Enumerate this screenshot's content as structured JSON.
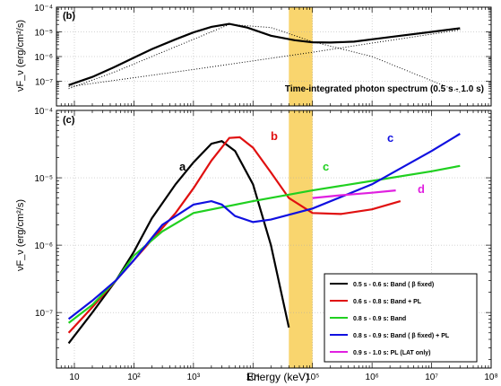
{
  "chart_data": [
    {
      "panel": "(b)",
      "type": "line",
      "title": "",
      "annotation": "Time-integrated photon spectrum (0.5 s - 1.0 s)",
      "xlabel": "",
      "ylabel": "νF_ν (erg/cm²/s)",
      "xscale": "log",
      "yscale": "log",
      "xlim": [
        5,
        100000000
      ],
      "ylim": [
        1e-08,
        0.0001
      ],
      "ytick_labels": [
        "10⁻⁴",
        "10⁻⁵",
        "10⁻⁶",
        "10⁻⁷"
      ],
      "grid": true,
      "highlight_band": {
        "x": [
          40000,
          100000
        ],
        "color": "#f9d56e"
      },
      "series": [
        {
          "color": "#000000",
          "style": "solid",
          "x": [
            8,
            20,
            50,
            100,
            200,
            500,
            1000,
            2000,
            4000,
            8000,
            20000,
            50000,
            100000,
            200000,
            500000,
            1000000,
            3000000,
            10000000,
            30000000
          ],
          "y": [
            7e-08,
            1.5e-07,
            4e-07,
            9e-07,
            2e-06,
            5e-06,
            9.5e-06,
            1.6e-05,
            2.1e-05,
            1.5e-05,
            7e-06,
            4.6e-06,
            3.8e-06,
            3.7e-06,
            4e-06,
            5e-06,
            7e-06,
            1e-05,
            1.4e-05
          ]
        },
        {
          "color": "#000000",
          "style": "dotted",
          "x": [
            8,
            50,
            200,
            1000,
            4000,
            20000,
            100000,
            1000000,
            30000000
          ],
          "y": [
            5e-08,
            2.5e-07,
            1e-06,
            5e-06,
            2e-05,
            1.5e-05,
            4e-06,
            1e-06,
            3.6e-08
          ]
        },
        {
          "color": "#000000",
          "style": "dotted",
          "x": [
            8,
            1000,
            100000,
            1000000,
            30000000
          ],
          "y": [
            6e-08,
            3e-07,
            1.5e-06,
            3.5e-06,
            1.2e-05
          ]
        }
      ]
    },
    {
      "panel": "(c)",
      "type": "line",
      "title": "",
      "xlabel": "Energy (keV)",
      "ylabel": "νF_ν (erg/cm²/s)",
      "xscale": "log",
      "yscale": "log",
      "xlim": [
        5,
        100000000
      ],
      "ylim": [
        1.5e-08,
        0.0001
      ],
      "xtick_labels": [
        "10",
        "10²",
        "10³",
        "10⁴",
        "10⁵",
        "10⁶",
        "10⁷",
        "10⁸"
      ],
      "ytick_labels": [
        "10⁻⁴",
        "10⁻⁵",
        "10⁻⁶",
        "10⁻⁷"
      ],
      "grid": true,
      "legend_position": "bottom-right",
      "highlight_band": {
        "x": [
          40000,
          100000
        ],
        "color": "#f9d56e"
      },
      "series": [
        {
          "name": "0.5 s - 0.6 s: Band ( β fixed)",
          "label": "a",
          "color": "#000000",
          "x": [
            8,
            20,
            50,
            100,
            200,
            500,
            1000,
            2000,
            3000,
            5000,
            10000,
            20000,
            40000
          ],
          "y": [
            3.5e-08,
            1e-07,
            3e-07,
            8e-07,
            2.5e-06,
            8e-06,
            1.7e-05,
            3.2e-05,
            3.5e-05,
            2.5e-05,
            8e-06,
            1e-06,
            6e-08
          ]
        },
        {
          "name": "0.6 s - 0.8 s: Band + PL",
          "label": "b",
          "color": "#e01010",
          "x": [
            8,
            20,
            50,
            100,
            200,
            500,
            1000,
            2000,
            4000,
            6000,
            10000,
            20000,
            40000,
            100000,
            300000,
            1000000,
            3000000
          ],
          "y": [
            5e-08,
            1.2e-07,
            3e-07,
            6e-07,
            1.2e-06,
            3e-06,
            7e-06,
            1.8e-05,
            3.9e-05,
            4e-05,
            2.8e-05,
            1.2e-05,
            5e-06,
            3e-06,
            2.9e-06,
            3.4e-06,
            4.5e-06
          ]
        },
        {
          "name": "0.8 s - 0.9 s: Band",
          "label": "c",
          "color": "#20d020",
          "x": [
            8,
            20,
            50,
            100,
            300,
            1000,
            10000,
            100000,
            1000000,
            10000000,
            30000000
          ],
          "y": [
            7e-08,
            1.3e-07,
            3e-07,
            7e-07,
            1.6e-06,
            3e-06,
            4.5e-06,
            6.5e-06,
            9e-06,
            1.25e-05,
            1.5e-05
          ]
        },
        {
          "name": "0.8 s - 0.9 s: Band ( β fixed) + PL",
          "label": "c",
          "color": "#1010e0",
          "x": [
            8,
            20,
            50,
            100,
            300,
            1000,
            2000,
            3000,
            5000,
            10000,
            20000,
            100000,
            1000000,
            10000000,
            30000000
          ],
          "y": [
            8e-08,
            1.5e-07,
            3e-07,
            6e-07,
            2e-06,
            4e-06,
            4.5e-06,
            4e-06,
            2.7e-06,
            2.2e-06,
            2.4e-06,
            3.5e-06,
            8e-06,
            2.5e-05,
            4.5e-05
          ]
        },
        {
          "name": "0.9 s - 1.0 s: PL (LAT only)",
          "label": "d",
          "color": "#e020e0",
          "x": [
            100000,
            300000,
            1000000,
            2500000
          ],
          "y": [
            5e-06,
            5.5e-06,
            6e-06,
            6.5e-06
          ]
        }
      ]
    }
  ]
}
